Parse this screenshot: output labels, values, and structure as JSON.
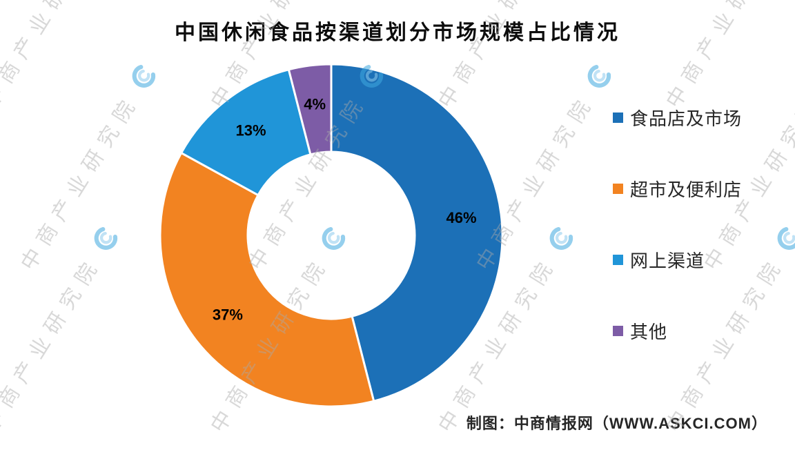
{
  "chart_data": {
    "type": "pie",
    "subtype": "donut",
    "title": "中国休闲食品按渠道划分市场规模占比情况",
    "labels": [
      "食品店及市场",
      "超市及便利店",
      "网上渠道",
      "其他"
    ],
    "values": [
      46,
      37,
      13,
      4
    ],
    "value_labels": [
      "46%",
      "37%",
      "13%",
      "4%"
    ],
    "colors": [
      "#1c70b7",
      "#f28321",
      "#2095d8",
      "#7d5ca6"
    ],
    "start_angle_deg": 0,
    "direction": "clockwise",
    "legend_position": "right",
    "inner_radius_ratio": 0.49,
    "label_text_color": "#000000"
  },
  "watermark": {
    "text": "中商产业研究院"
  },
  "footer": {
    "credit": "制图：中商情报网（WWW.ASKCI.COM）"
  }
}
